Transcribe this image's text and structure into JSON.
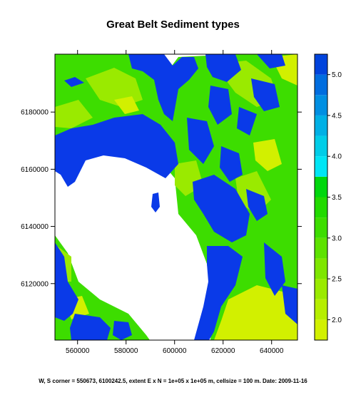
{
  "map": {
    "title": "Great Belt Sediment types",
    "caption": "W, S corner = 550673, 6100242.5, extent E x N = 1e+05 x 1e+05 m, cellsize = 100 m. Date: 2009-11-16",
    "x_ticks": [
      {
        "value": 560000,
        "label": "560000"
      },
      {
        "value": 580000,
        "label": "580000"
      },
      {
        "value": 600000,
        "label": "600000"
      },
      {
        "value": 620000,
        "label": "620000"
      },
      {
        "value": 640000,
        "label": "640000"
      }
    ],
    "y_ticks": [
      {
        "value": 6120000,
        "label": "6120000"
      },
      {
        "value": 6140000,
        "label": "6140000"
      },
      {
        "value": 6160000,
        "label": "6160000"
      },
      {
        "value": 6180000,
        "label": "6180000"
      }
    ],
    "x_range": [
      550673,
      650673
    ],
    "y_range": [
      6100242.5,
      6200242.5
    ],
    "colorbar": {
      "range": [
        1.75,
        5.25
      ],
      "ticks": [
        {
          "value": 2.0,
          "label": "2.0"
        },
        {
          "value": 2.5,
          "label": "2.5"
        },
        {
          "value": 3.0,
          "label": "3.0"
        },
        {
          "value": 3.5,
          "label": "3.5"
        },
        {
          "value": 4.0,
          "label": "4.0"
        },
        {
          "value": 4.5,
          "label": "4.5"
        },
        {
          "value": 5.0,
          "label": "5.0"
        }
      ],
      "bands": [
        {
          "from": 1.75,
          "to": 2.0,
          "color": "#d2f000"
        },
        {
          "from": 2.0,
          "to": 2.25,
          "color": "#b6ee00"
        },
        {
          "from": 2.25,
          "to": 2.5,
          "color": "#9aea00"
        },
        {
          "from": 2.5,
          "to": 2.75,
          "color": "#7ee600"
        },
        {
          "from": 2.75,
          "to": 3.0,
          "color": "#5de200"
        },
        {
          "from": 3.0,
          "to": 3.25,
          "color": "#3ddd00"
        },
        {
          "from": 3.25,
          "to": 3.5,
          "color": "#22da00"
        },
        {
          "from": 3.5,
          "to": 3.75,
          "color": "#00d70d"
        },
        {
          "from": 3.75,
          "to": 4.0,
          "color": "#00e5f5"
        },
        {
          "from": 4.0,
          "to": 4.25,
          "color": "#00cde8"
        },
        {
          "from": 4.25,
          "to": 4.5,
          "color": "#00b0e5"
        },
        {
          "from": 4.5,
          "to": 4.75,
          "color": "#008fe2"
        },
        {
          "from": 4.75,
          "to": 5.0,
          "color": "#006ddf"
        },
        {
          "from": 5.0,
          "to": 5.25,
          "color": "#0043dc"
        }
      ]
    },
    "colors": {
      "blue": "#0a3ae8",
      "yellow": "#d2f000",
      "lime": "#9aea00",
      "green": "#3ddd00",
      "frame": "#000000"
    }
  }
}
